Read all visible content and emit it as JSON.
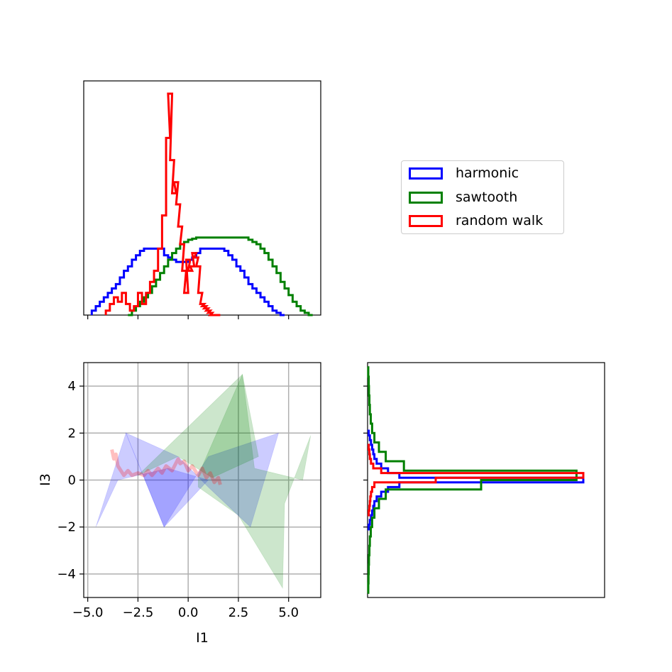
{
  "chart_data": [
    {
      "panel": "top-histogram",
      "type": "histogram-step",
      "x_ticks": [
        -5.0,
        -2.5,
        0.0,
        2.5,
        5.0
      ],
      "xlim": [
        -5.2,
        6.6
      ],
      "ylim": [
        0,
        1.0
      ],
      "show_y_ticks": false,
      "show_x_tick_labels": false,
      "series": [
        {
          "name": "harmonic",
          "color": "#0000ff",
          "x": [
            -4.7,
            -4.5,
            -4.3,
            -4.1,
            -3.9,
            -3.7,
            -3.5,
            -3.3,
            -3.1,
            -2.9,
            -2.7,
            -2.5,
            -2.3,
            -2.1,
            -1.9,
            -1.7,
            -1.5,
            -1.3,
            -1.1,
            -0.9,
            -0.7,
            -0.5,
            -0.3,
            -0.1,
            0.1,
            0.3,
            0.5,
            0.7,
            0.9,
            1.1,
            1.3,
            1.5,
            1.7,
            1.9,
            2.1,
            2.3,
            2.5,
            2.7,
            2.9,
            3.1,
            3.3,
            3.5,
            3.7,
            3.9,
            4.1,
            4.3,
            4.5,
            4.7
          ],
          "y": [
            0.02,
            0.04,
            0.06,
            0.08,
            0.1,
            0.12,
            0.14,
            0.17,
            0.2,
            0.22,
            0.25,
            0.27,
            0.29,
            0.3,
            0.3,
            0.3,
            0.3,
            0.3,
            0.27,
            0.26,
            0.25,
            0.24,
            0.24,
            0.24,
            0.25,
            0.26,
            0.28,
            0.3,
            0.3,
            0.3,
            0.3,
            0.3,
            0.3,
            0.29,
            0.27,
            0.25,
            0.22,
            0.2,
            0.17,
            0.14,
            0.12,
            0.1,
            0.08,
            0.06,
            0.04,
            0.02,
            0.01,
            0.0
          ]
        },
        {
          "name": "sawtooth",
          "color": "#008000",
          "x": [
            -2.9,
            -2.7,
            -2.5,
            -2.3,
            -2.1,
            -1.9,
            -1.7,
            -1.5,
            -1.3,
            -1.1,
            -0.9,
            -0.7,
            -0.5,
            -0.3,
            -0.1,
            0.1,
            0.3,
            0.5,
            0.7,
            0.9,
            1.1,
            1.3,
            1.5,
            1.7,
            1.9,
            2.1,
            2.3,
            2.5,
            2.7,
            2.9,
            3.1,
            3.3,
            3.5,
            3.7,
            3.9,
            4.1,
            4.3,
            4.5,
            4.7,
            4.9,
            5.1,
            5.3,
            5.5,
            5.7,
            5.9,
            6.1
          ],
          "y": [
            0.0,
            0.02,
            0.04,
            0.06,
            0.08,
            0.1,
            0.13,
            0.16,
            0.19,
            0.22,
            0.25,
            0.28,
            0.3,
            0.32,
            0.33,
            0.34,
            0.345,
            0.35,
            0.35,
            0.35,
            0.35,
            0.35,
            0.35,
            0.35,
            0.35,
            0.35,
            0.35,
            0.35,
            0.35,
            0.35,
            0.34,
            0.33,
            0.32,
            0.3,
            0.28,
            0.25,
            0.22,
            0.19,
            0.15,
            0.12,
            0.09,
            0.06,
            0.04,
            0.02,
            0.01,
            0.0
          ]
        },
        {
          "name": "random walk",
          "color": "#ff0000",
          "x": [
            -4.0,
            -3.8,
            -3.6,
            -3.4,
            -3.2,
            -3.0,
            -2.8,
            -2.6,
            -2.4,
            -2.2,
            -2.0,
            -1.8,
            -1.6,
            -1.4,
            -1.2,
            -1.0,
            -0.9,
            -0.8,
            -0.7,
            -0.6,
            -0.5,
            -0.4,
            -0.3,
            -0.2,
            -0.1,
            0.0,
            0.1,
            0.2,
            0.3,
            0.4,
            0.5,
            0.6,
            0.7,
            0.8,
            0.9,
            1.0,
            1.1,
            1.2,
            1.3,
            1.4,
            1.5
          ],
          "y": [
            0.02,
            0.05,
            0.08,
            0.06,
            0.1,
            0.05,
            0.02,
            0.04,
            0.1,
            0.05,
            0.1,
            0.15,
            0.2,
            0.3,
            0.45,
            0.8,
            1.0,
            0.7,
            0.55,
            0.6,
            0.5,
            0.4,
            0.32,
            0.2,
            0.1,
            0.25,
            0.2,
            0.22,
            0.28,
            0.26,
            0.22,
            0.1,
            0.05,
            0.04,
            0.03,
            0.02,
            0.01,
            0.0,
            0.0,
            0.0,
            0.0
          ]
        }
      ]
    },
    {
      "panel": "scatter-fill",
      "type": "area",
      "xlabel": "I1",
      "ylabel": "I3",
      "x_ticks": [
        -5.0,
        -2.5,
        0.0,
        2.5,
        5.0
      ],
      "x_tick_labels": [
        "−5.0",
        "−2.5",
        "0.0",
        "2.5",
        "5.0"
      ],
      "y_ticks": [
        -4,
        -2,
        0,
        2,
        4
      ],
      "y_tick_labels": [
        "−4",
        "−2",
        "0",
        "2",
        "4"
      ],
      "xlim": [
        -5.2,
        6.6
      ],
      "ylim": [
        -5.0,
        5.0
      ],
      "grid": true,
      "series": [
        {
          "name": "harmonic",
          "color": "#0000ff",
          "polygons": [
            [
              [
                -4.6,
                -2.0
              ],
              [
                -3.1,
                2.0
              ],
              [
                -1.2,
                -2.0
              ],
              [
                1.0,
                0.0
              ],
              [
                -1.0,
                0.5
              ],
              [
                -3.5,
                0.0
              ]
            ],
            [
              [
                -3.1,
                2.0
              ],
              [
                -1.2,
                -2.0
              ],
              [
                1.0,
                1.0
              ],
              [
                4.5,
                2.0
              ],
              [
                3.1,
                -2.0
              ],
              [
                1.0,
                -0.3
              ],
              [
                -0.5,
                1.0
              ]
            ]
          ]
        },
        {
          "name": "sawtooth",
          "color": "#008000",
          "polygons": [
            [
              [
                -2.5,
                0.2
              ],
              [
                2.7,
                4.5
              ],
              [
                3.5,
                1.0
              ],
              [
                1.2,
                0.1
              ],
              [
                -0.5,
                1.0
              ]
            ],
            [
              [
                0.5,
                0.2
              ],
              [
                2.7,
                4.5
              ],
              [
                3.3,
                0.5
              ],
              [
                5.7,
                0.0
              ],
              [
                6.1,
                1.9
              ],
              [
                4.8,
                -1.0
              ],
              [
                4.7,
                -4.6
              ],
              [
                2.5,
                -1.5
              ],
              [
                0.5,
                -0.3
              ]
            ]
          ]
        },
        {
          "name": "random walk",
          "color": "#ff0000",
          "path": [
            [
              -3.8,
              1.3
            ],
            [
              -3.7,
              0.9
            ],
            [
              -3.6,
              1.1
            ],
            [
              -3.5,
              0.6
            ],
            [
              -3.2,
              0.2
            ],
            [
              -3.0,
              0.4
            ],
            [
              -2.8,
              0.2
            ],
            [
              -2.5,
              0.3
            ],
            [
              -2.2,
              0.2
            ],
            [
              -2.0,
              0.4
            ],
            [
              -1.8,
              0.2
            ],
            [
              -1.5,
              0.5
            ],
            [
              -1.3,
              0.3
            ],
            [
              -1.1,
              0.6
            ],
            [
              -0.8,
              0.4
            ],
            [
              -0.5,
              0.9
            ],
            [
              -0.4,
              0.7
            ],
            [
              -0.2,
              0.8
            ],
            [
              0.0,
              0.4
            ],
            [
              0.2,
              0.6
            ],
            [
              0.5,
              0.2
            ],
            [
              0.7,
              0.5
            ],
            [
              0.9,
              0.1
            ],
            [
              1.1,
              0.3
            ],
            [
              1.3,
              -0.1
            ],
            [
              1.5,
              0.1
            ],
            [
              1.6,
              -0.2
            ]
          ]
        }
      ]
    },
    {
      "panel": "side-histogram",
      "type": "histogram-step-horizontal",
      "ylim": [
        -5.0,
        5.0
      ],
      "y_ticks": [
        -4,
        -2,
        0,
        2,
        4
      ],
      "xlim": [
        0,
        1.0
      ],
      "show_y_tick_labels": false,
      "show_x_ticks": false,
      "series": [
        {
          "name": "harmonic",
          "color": "#0000ff",
          "y": [
            -2.0,
            -1.8,
            -1.6,
            -1.4,
            -1.2,
            -1.0,
            -0.8,
            -0.6,
            -0.4,
            -0.2,
            0.0,
            0.2,
            0.4,
            0.6,
            0.8,
            1.0,
            1.2,
            1.4,
            1.6,
            1.8,
            2.0
          ],
          "x": [
            0.005,
            0.01,
            0.015,
            0.02,
            0.025,
            0.03,
            0.04,
            0.06,
            0.09,
            0.14,
            0.95,
            0.14,
            0.09,
            0.06,
            0.04,
            0.03,
            0.025,
            0.02,
            0.015,
            0.01,
            0.005
          ]
        },
        {
          "name": "sawtooth",
          "color": "#008000",
          "y": [
            -4.6,
            -4.2,
            -3.8,
            -3.4,
            -3.0,
            -2.6,
            -2.2,
            -1.8,
            -1.4,
            -1.0,
            -0.6,
            -0.2,
            0.2,
            0.6,
            1.0,
            1.4,
            1.8,
            2.2,
            2.6,
            3.0,
            3.4,
            3.8,
            4.2,
            4.6
          ],
          "x": [
            0.003,
            0.004,
            0.005,
            0.006,
            0.008,
            0.01,
            0.014,
            0.02,
            0.03,
            0.05,
            0.08,
            0.5,
            0.92,
            0.16,
            0.08,
            0.05,
            0.03,
            0.02,
            0.014,
            0.01,
            0.008,
            0.006,
            0.005,
            0.003
          ]
        },
        {
          "name": "random walk",
          "color": "#ff0000",
          "y": [
            -1.4,
            -1.2,
            -1.0,
            -0.8,
            -0.6,
            -0.4,
            -0.2,
            0.0,
            0.2,
            0.4,
            0.6,
            0.8,
            1.0,
            1.2,
            1.4
          ],
          "x": [
            0.005,
            0.008,
            0.01,
            0.012,
            0.015,
            0.02,
            0.03,
            0.3,
            0.95,
            0.06,
            0.025,
            0.015,
            0.01,
            0.008,
            0.005
          ]
        }
      ]
    }
  ],
  "legend": {
    "items": [
      {
        "label": "harmonic",
        "color": "#0000ff"
      },
      {
        "label": "sawtooth",
        "color": "#008000"
      },
      {
        "label": "random walk",
        "color": "#ff0000"
      }
    ]
  }
}
